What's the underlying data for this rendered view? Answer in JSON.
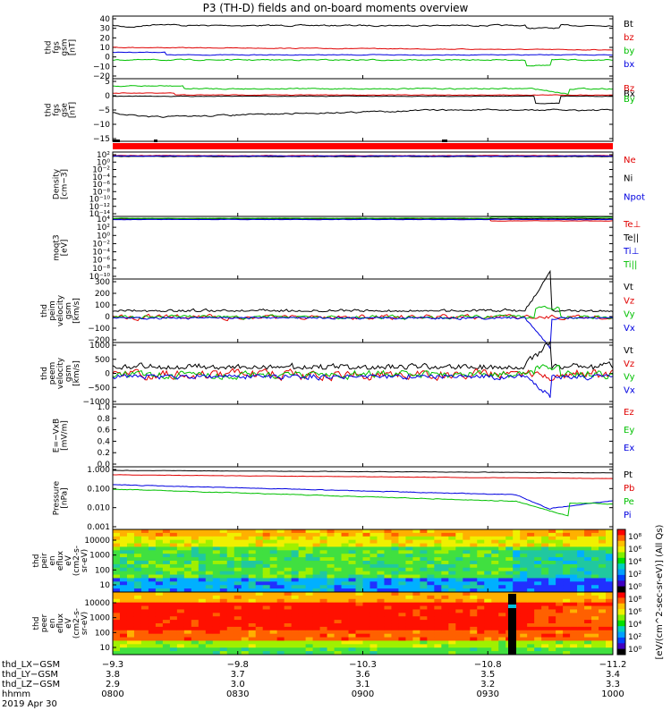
{
  "title": "P3 (TH-D) fields and on-board moments overview",
  "colors": {
    "black": "#000000",
    "red": "#e00000",
    "green": "#00c000",
    "blue": "#0000e0"
  },
  "chart_data": [
    {
      "type": "line",
      "ylabel": [
        "thd",
        "fgs",
        "gsm",
        "[nT]"
      ],
      "yticks": [
        "40",
        "30",
        "20",
        "10",
        "0",
        "−10",
        "−20"
      ],
      "ylim": [
        -20,
        40
      ],
      "series": [
        {
          "name": "Bt",
          "color": "#000000",
          "level": 32
        },
        {
          "name": "bz",
          "color": "#e00000",
          "level": 8
        },
        {
          "name": "by",
          "color": "#00c000",
          "level": -7
        },
        {
          "name": "bx",
          "color": "#0000e0",
          "level": -6
        }
      ]
    },
    {
      "type": "line",
      "ylabel": [
        "thd",
        "fgs",
        "gse",
        "[nT]"
      ],
      "yticks": [
        "5",
        "0",
        "−5",
        "−10",
        "−15"
      ],
      "ylim": [
        -15,
        5
      ],
      "series": [
        {
          "name": "Bz",
          "color": "#e00000",
          "level": 0
        },
        {
          "name": "Bx",
          "color": "#000000",
          "level": -8
        },
        {
          "name": "By",
          "color": "#00c000",
          "level": 2
        }
      ]
    },
    {
      "type": "line",
      "ylabel": [
        "Density",
        "[cm−3]"
      ],
      "yticks": [
        "10²",
        "10⁰",
        "10⁻²",
        "10⁻⁴",
        "10⁻⁶",
        "10⁻⁸",
        "10⁻¹⁰",
        "10⁻¹²",
        "10⁻¹⁴"
      ],
      "ylim": [
        -14,
        2
      ],
      "series": [
        {
          "name": "Ne",
          "color": "#e00000"
        },
        {
          "name": "Ni",
          "color": "#000000"
        },
        {
          "name": "Npot",
          "color": "#0000e0"
        }
      ]
    },
    {
      "type": "line",
      "ylabel": [
        "moqt3",
        "[eV]"
      ],
      "yticks": [
        "10⁴",
        "10²",
        "10⁰",
        "10⁻²",
        "10⁻⁴",
        "10⁻⁶",
        "10⁻⁸",
        "10⁻¹⁰"
      ],
      "ylim": [
        -10,
        4
      ],
      "series": [
        {
          "name": "Te⊥",
          "color": "#e00000"
        },
        {
          "name": "Te||",
          "color": "#000000"
        },
        {
          "name": "Ti⊥",
          "color": "#0000e0"
        },
        {
          "name": "Ti||",
          "color": "#00c000"
        }
      ]
    },
    {
      "type": "line",
      "ylabel": [
        "thd",
        "peim",
        "velocity",
        "gsm",
        "[km/s]"
      ],
      "yticks": [
        "300",
        "200",
        "100",
        "0",
        "−100",
        "−200"
      ],
      "ylim": [
        -200,
        300
      ],
      "series": [
        {
          "name": "Vt",
          "color": "#000000"
        },
        {
          "name": "Vz",
          "color": "#e00000"
        },
        {
          "name": "Vy",
          "color": "#00c000"
        },
        {
          "name": "Vx",
          "color": "#0000e0"
        }
      ]
    },
    {
      "type": "line",
      "ylabel": [
        "thd",
        "peem",
        "velocity",
        "gsm",
        "[km/s]"
      ],
      "yticks": [
        "1000",
        "500",
        "0",
        "−500",
        "−1000"
      ],
      "ylim": [
        -1000,
        1000
      ],
      "series": [
        {
          "name": "Vt",
          "color": "#000000"
        },
        {
          "name": "Vz",
          "color": "#e00000"
        },
        {
          "name": "Vy",
          "color": "#00c000"
        },
        {
          "name": "Vx",
          "color": "#0000e0"
        }
      ]
    },
    {
      "type": "line",
      "ylabel": [
        "E=−VxB",
        "[mV/m]"
      ],
      "yticks": [
        "1.0",
        "0.8",
        "0.6",
        "0.4",
        "0.2",
        "0.0"
      ],
      "ylim": [
        0,
        1
      ],
      "series": [
        {
          "name": "Ez",
          "color": "#e00000"
        },
        {
          "name": "Ey",
          "color": "#00c000"
        },
        {
          "name": "Ex",
          "color": "#0000e0"
        }
      ]
    },
    {
      "type": "line",
      "ylabel": [
        "Pressure",
        "[nPa]"
      ],
      "yticks": [
        "1.000",
        "0.100",
        "0.010",
        "0.001"
      ],
      "ylim": [
        0.001,
        1
      ],
      "series": [
        {
          "name": "Pt",
          "color": "#000000"
        },
        {
          "name": "Pb",
          "color": "#e00000"
        },
        {
          "name": "Pe",
          "color": "#00c000"
        },
        {
          "name": "Pi",
          "color": "#0000e0"
        }
      ]
    },
    {
      "type": "heatmap",
      "ylabel": [
        "thd",
        "peir",
        "en",
        "eflux",
        "eV",
        "(cm2-s-",
        "sr-eV)"
      ],
      "yticks": [
        "10000",
        "1000",
        "100",
        "10"
      ]
    },
    {
      "type": "heatmap",
      "ylabel": [
        "thd",
        "peer",
        "en",
        "eflux",
        "eV",
        "(cm2-s-",
        "sr-eV)"
      ],
      "yticks": [
        "10000",
        "1000",
        "100",
        "10"
      ]
    }
  ],
  "colorbar": {
    "label": "[eV/(cm^2-sec-sr-eV)] (All Qs)",
    "ticks_top": [
      "10⁸",
      "10⁶",
      "10⁴",
      "10²",
      "10⁰"
    ],
    "ticks_bottom": [
      "10⁸",
      "10⁶",
      "10⁴",
      "10²",
      "10⁰"
    ]
  },
  "xaxis": {
    "ticks": [
      {
        "label": "0800",
        "lx": "−9.3",
        "ly": "3.8",
        "lz": "2.9"
      },
      {
        "label": "0830",
        "lx": "−9.8",
        "ly": "3.7",
        "lz": "3.0"
      },
      {
        "label": "0900",
        "lx": "−10.3",
        "ly": "3.6",
        "lz": "3.1"
      },
      {
        "label": "0930",
        "lx": "−10.8",
        "ly": "3.5",
        "lz": "3.2"
      },
      {
        "label": "1000",
        "lx": "−11.2",
        "ly": "3.4",
        "lz": "3.3"
      }
    ],
    "row_labels": [
      "thd_LX−GSM",
      "thd_LY−GSM",
      "thd_LZ−GSM",
      "hhmm",
      "2019 Apr 30"
    ]
  }
}
